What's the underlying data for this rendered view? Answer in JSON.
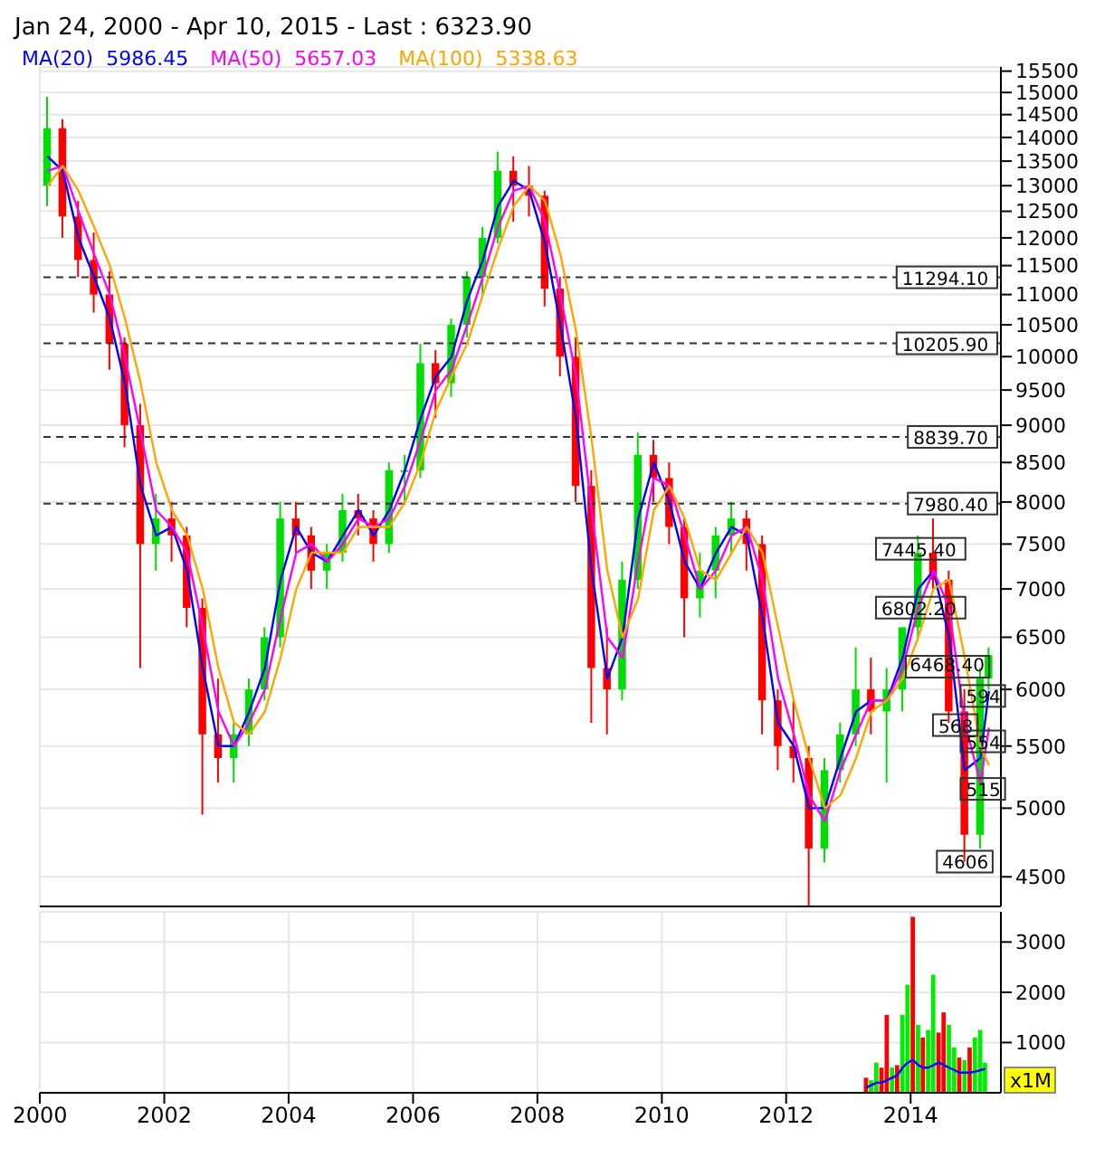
{
  "chart_data": [
    {
      "type": "candlestick",
      "title": "Jan 24, 2000 - Apr 10, 2015 - Last : 6323.90",
      "x": [
        "2000-02-15",
        "2000-05-15",
        "2000-08-15",
        "2000-11-15",
        "2001-02-15",
        "2001-05-15",
        "2001-08-15",
        "2001-11-15",
        "2002-02-15",
        "2002-05-15",
        "2002-08-15",
        "2002-11-15",
        "2003-02-15",
        "2003-05-15",
        "2003-08-15",
        "2003-11-15",
        "2004-02-15",
        "2004-05-15",
        "2004-08-15",
        "2004-11-15",
        "2005-02-15",
        "2005-05-15",
        "2005-08-15",
        "2005-11-15",
        "2006-02-15",
        "2006-05-15",
        "2006-08-15",
        "2006-11-15",
        "2007-02-15",
        "2007-05-15",
        "2007-08-15",
        "2007-11-15",
        "2008-02-15",
        "2008-05-15",
        "2008-08-15",
        "2008-11-15",
        "2009-02-15",
        "2009-05-15",
        "2009-08-15",
        "2009-11-15",
        "2010-02-15",
        "2010-05-15",
        "2010-08-15",
        "2010-11-15",
        "2011-02-15",
        "2011-05-15",
        "2011-08-15",
        "2011-11-15",
        "2012-02-15",
        "2012-05-15",
        "2012-08-15",
        "2012-11-15",
        "2013-02-15",
        "2013-05-15",
        "2013-08-15",
        "2013-11-15",
        "2014-02-15",
        "2014-05-15",
        "2014-08-15",
        "2014-11-15",
        "2015-02-15",
        "2015-04-06"
      ],
      "ohlc": [
        [
          13000,
          14900,
          12600,
          14200
        ],
        [
          14200,
          14400,
          12000,
          12400
        ],
        [
          12400,
          12700,
          11300,
          11600
        ],
        [
          11600,
          12100,
          10700,
          11000
        ],
        [
          11000,
          11400,
          9800,
          10200
        ],
        [
          10200,
          10300,
          8700,
          9000
        ],
        [
          9000,
          9300,
          6200,
          7500
        ],
        [
          7500,
          8100,
          7200,
          7800
        ],
        [
          7800,
          8000,
          7300,
          7600
        ],
        [
          7600,
          7700,
          6600,
          6800
        ],
        [
          6800,
          6900,
          4950,
          5600
        ],
        [
          5600,
          6100,
          5200,
          5400
        ],
        [
          5400,
          5700,
          5200,
          5600
        ],
        [
          5600,
          6100,
          5500,
          6000
        ],
        [
          6000,
          6600,
          5900,
          6500
        ],
        [
          6500,
          8000,
          6400,
          7800
        ],
        [
          7800,
          8000,
          7400,
          7600
        ],
        [
          7600,
          7700,
          7000,
          7200
        ],
        [
          7200,
          7500,
          7000,
          7400
        ],
        [
          7400,
          8100,
          7300,
          7900
        ],
        [
          7900,
          8100,
          7600,
          7800
        ],
        [
          7800,
          7900,
          7300,
          7500
        ],
        [
          7500,
          8500,
          7400,
          8400
        ],
        [
          8400,
          8600,
          8000,
          8400
        ],
        [
          8400,
          10200,
          8300,
          9900
        ],
        [
          9900,
          10100,
          9100,
          9600
        ],
        [
          9600,
          10600,
          9400,
          10500
        ],
        [
          10500,
          11400,
          10300,
          11300
        ],
        [
          11300,
          12200,
          11000,
          12000
        ],
        [
          12000,
          13700,
          11900,
          13300
        ],
        [
          13300,
          13600,
          12300,
          13000
        ],
        [
          13000,
          13400,
          12400,
          12800
        ],
        [
          12800,
          12900,
          10800,
          11100
        ],
        [
          11100,
          11300,
          9700,
          10000
        ],
        [
          10000,
          10300,
          8000,
          8200
        ],
        [
          8200,
          8400,
          5700,
          6200
        ],
        [
          6200,
          6600,
          5600,
          6000
        ],
        [
          6000,
          7300,
          5900,
          7100
        ],
        [
          7100,
          8900,
          7000,
          8600
        ],
        [
          8600,
          8800,
          8000,
          8300
        ],
        [
          8300,
          8500,
          7500,
          7700
        ],
        [
          7700,
          7800,
          6500,
          6900
        ],
        [
          6900,
          7400,
          6700,
          7200
        ],
        [
          7200,
          7700,
          6900,
          7600
        ],
        [
          7600,
          8000,
          7400,
          7800
        ],
        [
          7800,
          7900,
          7200,
          7500
        ],
        [
          7500,
          7600,
          5600,
          5900
        ],
        [
          5900,
          6000,
          5300,
          5500
        ],
        [
          5500,
          5900,
          5200,
          5400
        ],
        [
          5400,
          5500,
          4300,
          4700
        ],
        [
          4700,
          5400,
          4600,
          5300
        ],
        [
          5300,
          5700,
          5200,
          5600
        ],
        [
          5600,
          6400,
          5500,
          6000
        ],
        [
          6000,
          6300,
          5600,
          5800
        ],
        [
          5800,
          6200,
          5200,
          6000
        ],
        [
          6000,
          6600,
          5800,
          6600
        ],
        [
          6600,
          7600,
          6500,
          7400
        ],
        [
          7400,
          7800,
          7000,
          7100
        ],
        [
          7100,
          7200,
          5700,
          5800
        ],
        [
          5800,
          6000,
          4606,
          4800
        ],
        [
          4800,
          6200,
          4700,
          6100
        ],
        [
          6100,
          6400,
          6000,
          6323.9
        ]
      ],
      "series": [
        {
          "name": "MA(20)  5986.45",
          "type": "line",
          "color": "#0000ff",
          "values": [
            13600,
            13300,
            12000,
            11300,
            10600,
            9600,
            8200,
            7600,
            7700,
            7200,
            6200,
            5500,
            5500,
            5800,
            6200,
            7100,
            7700,
            7400,
            7300,
            7600,
            7900,
            7600,
            7900,
            8400,
            9100,
            9700,
            10000,
            10900,
            11600,
            12600,
            13100,
            12900,
            11900,
            10500,
            9100,
            7200,
            6100,
            6500,
            7800,
            8500,
            8000,
            7300,
            7000,
            7400,
            7700,
            7600,
            6700,
            5700,
            5500,
            5000,
            5000,
            5400,
            5800,
            5900,
            5900,
            6300,
            7000,
            7200,
            6500,
            5300,
            5400,
            5986.45
          ]
        },
        {
          "name": "MA(50)  5657.03",
          "type": "line",
          "color": "#ff00ff",
          "values": [
            13300,
            13400,
            12500,
            11700,
            11000,
            10000,
            8900,
            7900,
            7700,
            7400,
            6600,
            5800,
            5500,
            5700,
            6000,
            6700,
            7400,
            7500,
            7300,
            7500,
            7800,
            7700,
            7800,
            8200,
            8800,
            9500,
            9800,
            10500,
            11300,
            12200,
            12900,
            13000,
            12300,
            11000,
            9700,
            7900,
            6500,
            6300,
            7300,
            8300,
            8200,
            7600,
            7000,
            7200,
            7600,
            7700,
            7100,
            6100,
            5600,
            5100,
            4900,
            5300,
            5600,
            5900,
            5900,
            6200,
            6800,
            7200,
            6800,
            5700,
            5200,
            5657.03
          ]
        },
        {
          "name": "MA(100)  5338.63",
          "type": "line",
          "color": "#ffa500",
          "values": [
            13000,
            13400,
            12900,
            12200,
            11500,
            10600,
            9600,
            8500,
            7900,
            7600,
            7000,
            6200,
            5700,
            5600,
            5800,
            6300,
            7000,
            7400,
            7400,
            7400,
            7700,
            7700,
            7700,
            8000,
            8500,
            9200,
            9700,
            10200,
            11000,
            11800,
            12600,
            13000,
            12700,
            11700,
            10400,
            8800,
            7200,
            6500,
            6900,
            7900,
            8200,
            7800,
            7200,
            7100,
            7400,
            7700,
            7400,
            6600,
            5900,
            5400,
            5000,
            5100,
            5400,
            5800,
            5900,
            6100,
            6500,
            7000,
            7100,
            6300,
            5500,
            5338.63
          ]
        }
      ],
      "log": true,
      "ylim": [
        4300,
        15600
      ],
      "yticks": [
        4500,
        5000,
        5500,
        6000,
        6500,
        7000,
        7500,
        8000,
        8500,
        9000,
        9500,
        10000,
        10500,
        11000,
        11500,
        12000,
        12500,
        13000,
        13500,
        14000,
        14500,
        15000,
        15500
      ],
      "xlim": [
        "2000-01-01",
        "2015-06-15"
      ],
      "xticks": [
        "2000",
        "2002",
        "2004",
        "2006",
        "2008",
        "2010",
        "2012",
        "2014"
      ],
      "tick_labels": "y",
      "grid": true,
      "legend": "top left",
      "ref_lines": [
        {
          "axis": "y",
          "value": 11294.1,
          "label": "11294.10",
          "line_style": "dashed"
        },
        {
          "axis": "y",
          "value": 10205.9,
          "label": "10205.90",
          "line_style": "dashed"
        },
        {
          "axis": "y",
          "value": 8839.7,
          "label": "8839.70",
          "line_style": "dashed"
        },
        {
          "axis": "y",
          "value": 7980.4,
          "label": "7980.40",
          "line_style": "dashed"
        }
      ],
      "annotations": [
        {
          "text": "7445.40",
          "x": "2014-03-01",
          "y": 7445.4
        },
        {
          "text": "6802.20",
          "x": "2014-03-01",
          "y": 6802.2
        },
        "6468.40",
        {
          "text": "594",
          "x": "2015-03-01",
          "y": 5940
        },
        {
          "text": "568",
          "x": "2014-09-20",
          "y": 5680
        },
        {
          "text": "554",
          "x": "2015-03-01",
          "y": 5540
        },
        {
          "text": "515",
          "x": "2015-03-01",
          "y": 5150
        },
        {
          "text": "4606",
          "x": "2014-11-15",
          "y": 4606
        }
      ]
    },
    {
      "type": "bar",
      "ylabel": "x1M",
      "x": [
        "2013-04-15",
        "2013-05-15",
        "2013-06-15",
        "2013-07-15",
        "2013-08-15",
        "2013-09-15",
        "2013-10-15",
        "2013-11-15",
        "2013-12-15",
        "2014-01-15",
        "2014-02-15",
        "2014-03-15",
        "2014-04-15",
        "2014-05-15",
        "2014-06-15",
        "2014-07-15",
        "2014-08-15",
        "2014-09-15",
        "2014-10-15",
        "2014-11-15",
        "2014-12-15",
        "2015-01-15",
        "2015-02-15",
        "2015-03-15"
      ],
      "series": [
        {
          "type": "bar",
          "values": [
            300,
            250,
            600,
            500,
            1550,
            500,
            550,
            1550,
            2150,
            3500,
            1350,
            1100,
            1250,
            2350,
            1200,
            1600,
            1350,
            900,
            700,
            650,
            900,
            1100,
            1250,
            600
          ],
          "colors": [
            "#ff0000",
            "#00ee00",
            "#00ee00",
            "#ff0000",
            "#ff0000",
            "#00ee00",
            "#ff0000",
            "#00ee00",
            "#00ee00",
            "#ff0000",
            "#00ee00",
            "#ff0000",
            "#00ee00",
            "#00ee00",
            "#ff0000",
            "#ff0000",
            "#00ee00",
            "#00ee00",
            "#ff0000",
            "#00ee00",
            "#ff0000",
            "#00ee00",
            "#00ee00",
            "#00ee00"
          ]
        },
        {
          "type": "line",
          "color": "#0000ff",
          "values": [
            100,
            150,
            200,
            200,
            250,
            300,
            350,
            500,
            600,
            650,
            550,
            500,
            500,
            550,
            600,
            550,
            500,
            450,
            400,
            400,
            400,
            420,
            450,
            480
          ]
        }
      ],
      "ylim": [
        0,
        3600
      ],
      "yticks": [
        1000,
        2000,
        3000
      ],
      "xlim": [
        "2000-01-01",
        "2015-06-15"
      ],
      "xticks": [
        "2000",
        "2002",
        "2004",
        "2006",
        "2008",
        "2010",
        "2012",
        "2014"
      ],
      "grid": true
    }
  ]
}
